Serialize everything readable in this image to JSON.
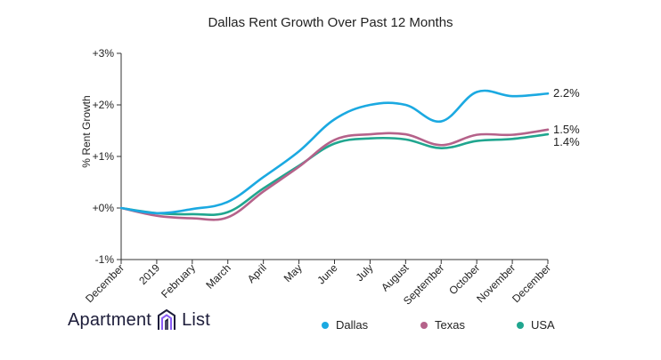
{
  "chart_data": {
    "type": "line",
    "title": "Dallas Rent Growth Over Past 12 Months",
    "ylabel": "% Rent Growth",
    "xlabel": "",
    "categories": [
      "December",
      "2019",
      "February",
      "March",
      "April",
      "May",
      "June",
      "July",
      "August",
      "September",
      "October",
      "November",
      "December"
    ],
    "ylim": [
      -1,
      3
    ],
    "yticks": [
      -1,
      0,
      1,
      2,
      3
    ],
    "ytick_labels": [
      "-1%",
      "+0%",
      "+1%",
      "+2%",
      "+3%"
    ],
    "grid": false,
    "legend_position": "bottom-right",
    "series": [
      {
        "name": "Dallas",
        "color": "#1ba9e1",
        "end_label": "2.2%",
        "values": [
          0,
          -0.1,
          -0.02,
          0.12,
          0.6,
          1.1,
          1.72,
          2.0,
          2.0,
          1.68,
          2.25,
          2.17,
          2.22
        ]
      },
      {
        "name": "Texas",
        "color": "#b5628a",
        "end_label": "1.5%",
        "values": [
          0,
          -0.15,
          -0.2,
          -0.18,
          0.32,
          0.8,
          1.32,
          1.43,
          1.43,
          1.22,
          1.42,
          1.42,
          1.52
        ]
      },
      {
        "name": "USA",
        "color": "#20a68f",
        "end_label": "1.4%",
        "values": [
          0,
          -0.1,
          -0.12,
          -0.08,
          0.38,
          0.82,
          1.25,
          1.35,
          1.33,
          1.16,
          1.3,
          1.34,
          1.43
        ]
      }
    ]
  },
  "brand": {
    "left_word": "Apartment",
    "right_word": "List"
  },
  "legend": [
    {
      "label": "Dallas",
      "color": "#1ba9e1"
    },
    {
      "label": "Texas",
      "color": "#b5628a"
    },
    {
      "label": "USA",
      "color": "#20a68f"
    }
  ]
}
